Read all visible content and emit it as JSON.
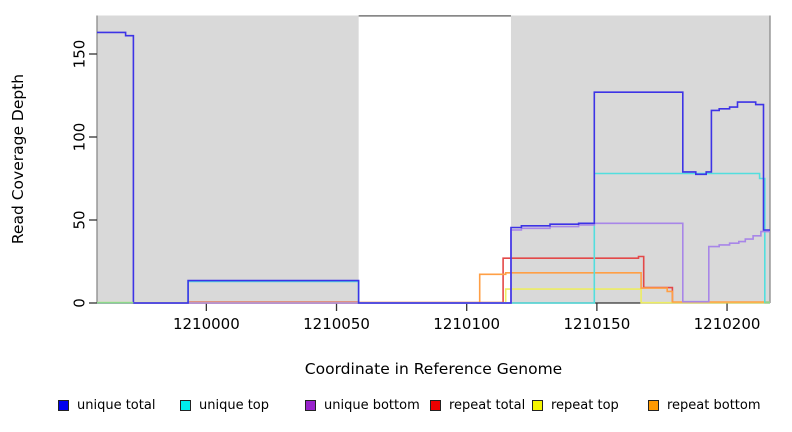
{
  "chart_data": {
    "type": "line",
    "subtype": "step-coverage-plot",
    "title": "",
    "xlabel": "Coordinate in Reference Genome",
    "ylabel": "Read Coverage Depth",
    "x_range": [
      1209958,
      1210216.5
    ],
    "y_range": [
      0,
      173
    ],
    "x_ticks": [
      1210000,
      1210050,
      1210100,
      1210150,
      1210200
    ],
    "x_tick_labels": [
      "1210000",
      "1210050",
      "1210100",
      "1210150",
      "1210200"
    ],
    "y_ticks": [
      0,
      50,
      100,
      150
    ],
    "y_tick_labels": [
      "0",
      "50",
      "100",
      "150"
    ],
    "grid": "off",
    "legend_position": "bottom",
    "panel_shade_color": "#d9d9d9",
    "shaded_regions": [
      {
        "x0": 1209958,
        "x1": 1210058.5
      },
      {
        "x0": 1210117,
        "x1": 1210216.5
      }
    ],
    "gap_top_line": {
      "x0": 1210058.5,
      "x1": 1210117,
      "y": 173,
      "color": "#777777"
    },
    "series": [
      {
        "name": "repeat total",
        "color": "#e34848",
        "swatch": "#ee0000",
        "points": [
          [
            1209958,
            0
          ],
          [
            1209993,
            0.5
          ],
          [
            1210058.5,
            0.3
          ],
          [
            1210114,
            27
          ],
          [
            1210166,
            28
          ],
          [
            1210168,
            9.3
          ],
          [
            1210179,
            0.3
          ],
          [
            1210216.5,
            0.3
          ]
        ]
      },
      {
        "name": "repeat top",
        "color": "#eded62",
        "swatch": "#f5f500",
        "points": [
          [
            1209958,
            0.2
          ],
          [
            1210115,
            8.4
          ],
          [
            1210167,
            0.2
          ],
          [
            1210216.5,
            0.2
          ]
        ]
      },
      {
        "name": "repeat bottom",
        "color": "#ff9f45",
        "swatch": "#ff9900",
        "points": [
          [
            1209958,
            0
          ],
          [
            1210105,
            17.3
          ],
          [
            1210115,
            18.2
          ],
          [
            1210167,
            9
          ],
          [
            1210177,
            7
          ],
          [
            1210179,
            0.6
          ],
          [
            1210216.5,
            0.6
          ]
        ]
      },
      {
        "name": "unique top",
        "color": "#52dede",
        "swatch": "#00eeee",
        "points": [
          [
            1209958,
            0
          ],
          [
            1209993,
            13
          ],
          [
            1210058.5,
            0
          ],
          [
            1210149,
            78
          ],
          [
            1210212.5,
            75
          ],
          [
            1210214.5,
            0.4
          ],
          [
            1210216.5,
            0.4
          ]
        ]
      },
      {
        "name": "unique bottom",
        "color": "#a886e8",
        "swatch": "#9922cc",
        "points": [
          [
            1209958,
            0
          ],
          [
            1210117,
            44
          ],
          [
            1210121,
            45
          ],
          [
            1210132,
            46
          ],
          [
            1210143,
            47
          ],
          [
            1210149,
            48
          ],
          [
            1210183,
            0.8
          ],
          [
            1210193,
            34
          ],
          [
            1210197,
            35
          ],
          [
            1210201,
            36
          ],
          [
            1210204.5,
            37
          ],
          [
            1210207,
            38.5
          ],
          [
            1210210,
            40.5
          ],
          [
            1210213,
            43
          ],
          [
            1210216.5,
            43
          ]
        ]
      },
      {
        "name": "unique total",
        "color": "#3d33e6",
        "swatch": "#0000ee",
        "points": [
          [
            1209958,
            163
          ],
          [
            1209969,
            161
          ],
          [
            1209972,
            0
          ],
          [
            1209993,
            13.5
          ],
          [
            1210058.5,
            0
          ],
          [
            1210117,
            45.5
          ],
          [
            1210121,
            46.5
          ],
          [
            1210132,
            47.5
          ],
          [
            1210143,
            48
          ],
          [
            1210149,
            127
          ],
          [
            1210183,
            79
          ],
          [
            1210188,
            77.5
          ],
          [
            1210192,
            79
          ],
          [
            1210194,
            116
          ],
          [
            1210197,
            117
          ],
          [
            1210201,
            118
          ],
          [
            1210204,
            121
          ],
          [
            1210211,
            119.5
          ],
          [
            1210214,
            44
          ],
          [
            1210216.5,
            44
          ]
        ]
      },
      {
        "name": "overlap baseline (cyan+yellow)",
        "color": "#8cd98c",
        "swatch": "#8cd98c",
        "in_legend": false,
        "points": [
          [
            1209958,
            0.2
          ],
          [
            1209972,
            0.2
          ]
        ]
      },
      {
        "name": "overlap baseline right (cyan+yellow)",
        "color": "#8cd98c",
        "swatch": "#8cd98c",
        "in_legend": false,
        "points": [
          [
            1210214.5,
            0.3
          ],
          [
            1210216.5,
            0.3
          ]
        ]
      }
    ],
    "legend_order": [
      5,
      3,
      4,
      0,
      1,
      2
    ]
  },
  "axes_colors": {
    "box": "#8a8a8a",
    "axis_line": "#333333",
    "tick": "#333333",
    "tick_label": "#000000"
  }
}
